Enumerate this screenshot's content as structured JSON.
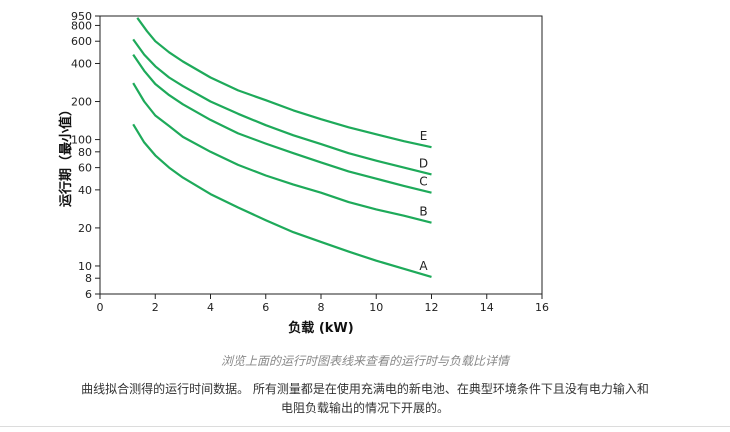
{
  "chart_data": {
    "type": "line",
    "xlabel": "负载 (kW)",
    "ylabel": "运行期（最小值）",
    "xlim": [
      0,
      16
    ],
    "ylim": [
      6,
      950
    ],
    "y_scale": "log",
    "grid": false,
    "x_ticks": [
      0,
      2,
      4,
      6,
      8,
      10,
      12,
      14,
      16
    ],
    "y_ticks": [
      6,
      8,
      10,
      20,
      40,
      60,
      80,
      100,
      200,
      400,
      600,
      800,
      950
    ],
    "series": [
      {
        "name": "A",
        "x": [
          1.2,
          1.6,
          2,
          2.5,
          3,
          4,
          5,
          6,
          7,
          8,
          9,
          10,
          11,
          12
        ],
        "y": [
          132,
          95,
          75,
          60,
          50,
          37,
          29,
          23,
          18.5,
          15.5,
          13,
          11,
          9.5,
          8.2
        ]
      },
      {
        "name": "B",
        "x": [
          1.2,
          1.6,
          2,
          2.5,
          3,
          4,
          5,
          6,
          7,
          8,
          9,
          10,
          11,
          12
        ],
        "y": [
          280,
          200,
          155,
          128,
          105,
          80,
          63,
          52,
          44,
          38,
          32,
          28,
          25,
          22
        ]
      },
      {
        "name": "C",
        "x": [
          1.2,
          1.6,
          2,
          2.5,
          3,
          4,
          5,
          6,
          7,
          8,
          9,
          10,
          11,
          12
        ],
        "y": [
          470,
          350,
          275,
          225,
          190,
          143,
          112,
          93,
          78,
          66,
          56,
          49,
          43,
          38
        ]
      },
      {
        "name": "D",
        "x": [
          1.2,
          1.6,
          2,
          2.5,
          3,
          4,
          5,
          6,
          7,
          8,
          9,
          10,
          11,
          12
        ],
        "y": [
          620,
          470,
          380,
          310,
          265,
          200,
          160,
          130,
          108,
          92,
          78,
          68,
          60,
          53
        ]
      },
      {
        "name": "E",
        "x": [
          1.35,
          1.7,
          2,
          2.5,
          3,
          4,
          5,
          6,
          7,
          8,
          9,
          10,
          11,
          12
        ],
        "y": [
          920,
          720,
          600,
          490,
          415,
          310,
          245,
          205,
          170,
          145,
          125,
          110,
          97,
          87
        ]
      }
    ],
    "color": "#1eaa5a"
  },
  "caption": "浏览上面的运行时图表线来查看的运行时与负载比详情",
  "description_line1": "曲线拟合测得的运行时间数据。 所有测量都是在使用充满电的新电池、在典型环境条件下且没有电力输入和",
  "description_line2": "电阻负载输出的情况下开展的。"
}
